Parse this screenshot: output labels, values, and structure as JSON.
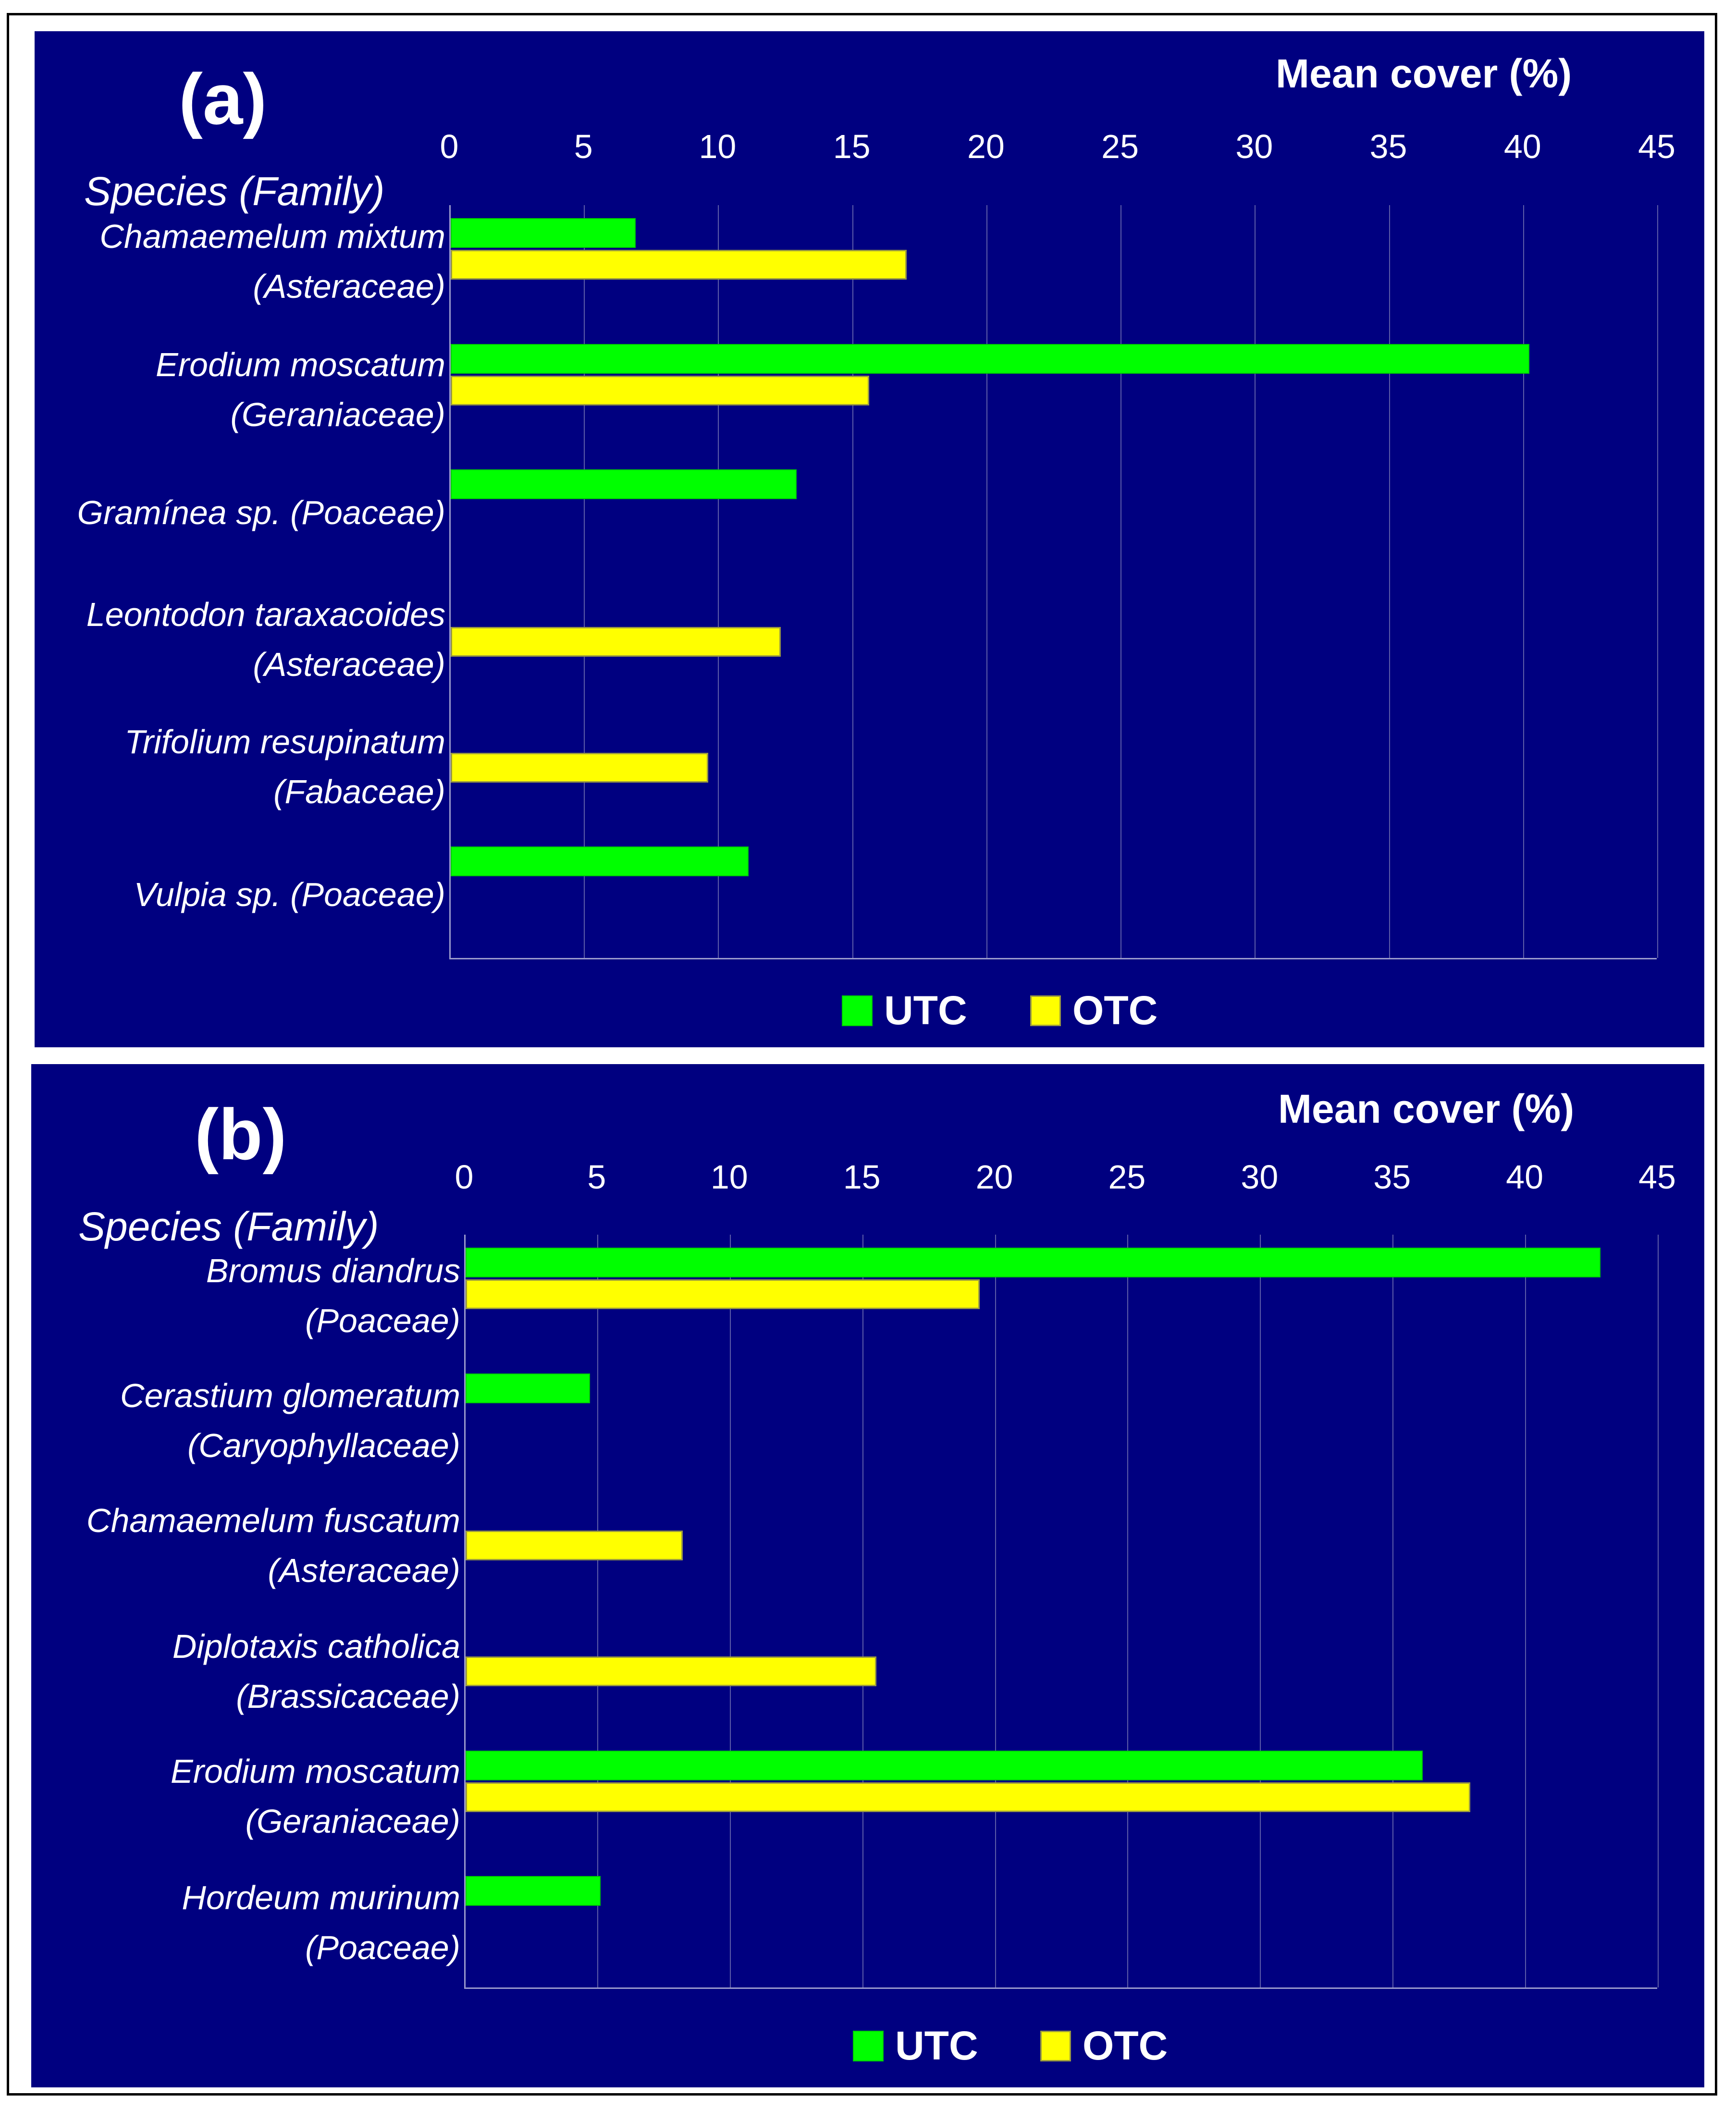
{
  "chart_data": [
    {
      "type": "bar",
      "orientation": "horizontal",
      "panel_label": "(a)",
      "title": "Mean cover (%)",
      "xlabel": "Mean cover (%)",
      "ylabel": "Species (Family)",
      "xlim": [
        0,
        45
      ],
      "ticks": [
        "0",
        "5",
        "10",
        "15",
        "20",
        "25",
        "30",
        "35",
        "40",
        "45"
      ],
      "categories": [
        [
          "Chamaemelum mixtum",
          "(Asteraceae)"
        ],
        [
          "Erodium moscatum",
          "(Geraniaceae)"
        ],
        [
          "Gramínea sp. (Poaceae)"
        ],
        [
          "Leontodon taraxacoides",
          "(Asteraceae)"
        ],
        [
          "Trifolium resupinatum",
          "(Fabaceae)"
        ],
        [
          "Vulpia sp. (Poaceae)"
        ]
      ],
      "series": [
        {
          "name": "UTC",
          "color": "#00ff00",
          "values": [
            6.9,
            40.2,
            12.9,
            null,
            null,
            11.1
          ]
        },
        {
          "name": "OTC",
          "color": "#ffff00",
          "values": [
            17.0,
            15.6,
            null,
            12.3,
            9.6,
            null
          ]
        }
      ],
      "legend": "bottom"
    },
    {
      "type": "bar",
      "orientation": "horizontal",
      "panel_label": "(b)",
      "title": "Mean cover (%)",
      "xlabel": "Mean cover (%)",
      "ylabel": "Species (Family)",
      "xlim": [
        0,
        45
      ],
      "ticks": [
        "0",
        "5",
        "10",
        "15",
        "20",
        "25",
        "30",
        "35",
        "40",
        "45"
      ],
      "categories": [
        [
          "Bromus diandrus",
          "(Poaceae)"
        ],
        [
          "Cerastium glomeratum",
          "(Caryophyllaceae)"
        ],
        [
          "Chamaemelum fuscatum",
          "(Asteraceae)"
        ],
        [
          "Diplotaxis catholica",
          "(Brassicaceae)"
        ],
        [
          "Erodium moscatum",
          "(Geraniaceae)"
        ],
        [
          "Hordeum murinum",
          "(Poaceae)"
        ]
      ],
      "series": [
        {
          "name": "UTC",
          "color": "#00ff00",
          "values": [
            42.8,
            4.7,
            null,
            null,
            36.1,
            5.1
          ]
        },
        {
          "name": "OTC",
          "color": "#ffff00",
          "values": [
            19.4,
            null,
            8.2,
            15.5,
            37.9,
            null
          ]
        }
      ],
      "legend": "bottom"
    }
  ]
}
